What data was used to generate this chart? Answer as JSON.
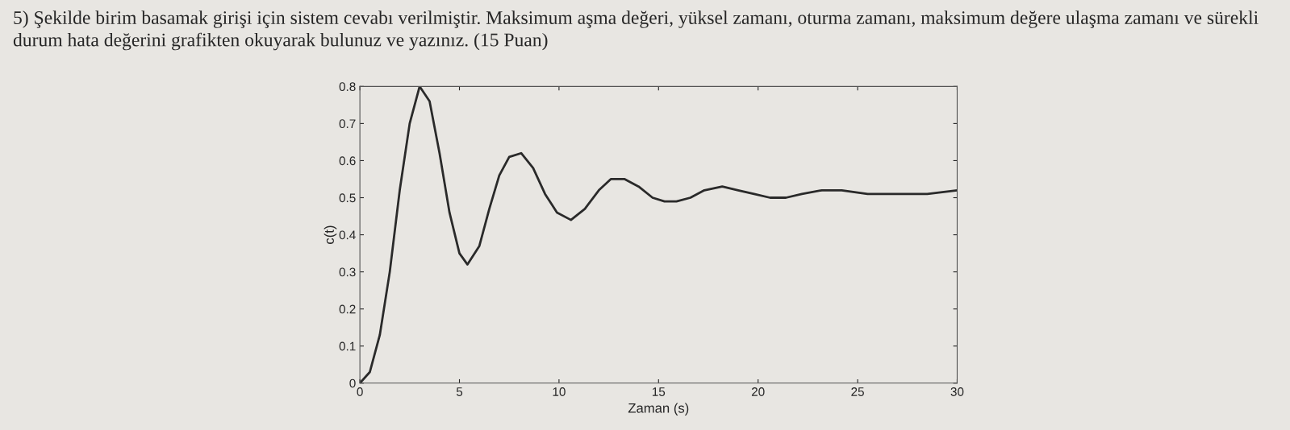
{
  "chart_data": {
    "type": "line",
    "title": "5) Şekilde birim basamak girişi için sistem cevabı verilmiştir. Maksimum aşma değeri, yüksel zamanı, oturma zamanı, maksimum değere ulaşma zamanı ve sürekli durum hata değerini grafikten okuyarak bulunuz ve yazınız. (15 Puan)",
    "xlabel": "Zaman (s)",
    "ylabel": "c(t)",
    "x": [
      0,
      0.5,
      1,
      1.5,
      2,
      2.5,
      3,
      3.5,
      4,
      4.5,
      5,
      5.4,
      6,
      6.5,
      7,
      7.5,
      8.1,
      8.7,
      9.3,
      9.9,
      10.6,
      11.3,
      12,
      12.6,
      13.3,
      14,
      14.7,
      15.3,
      15.9,
      16.6,
      17.3,
      18.2,
      19,
      19.8,
      20.6,
      21.4,
      22.2,
      23.2,
      24.2,
      25.5,
      26.5,
      27.5,
      28.5,
      30
    ],
    "series": [
      {
        "color": "#2a2a2a",
        "values": [
          0,
          0.03,
          0.13,
          0.3,
          0.52,
          0.7,
          0.8,
          0.76,
          0.62,
          0.46,
          0.35,
          0.32,
          0.37,
          0.47,
          0.56,
          0.61,
          0.62,
          0.58,
          0.51,
          0.46,
          0.44,
          0.47,
          0.52,
          0.55,
          0.55,
          0.53,
          0.5,
          0.49,
          0.49,
          0.5,
          0.52,
          0.53,
          0.52,
          0.51,
          0.5,
          0.5,
          0.51,
          0.52,
          0.52,
          0.51,
          0.51,
          0.51,
          0.51,
          0.52
        ]
      }
    ],
    "xlim": [
      0,
      30
    ],
    "xticks": [
      0,
      5,
      10,
      15,
      20,
      25,
      30
    ],
    "ylim": [
      0,
      0.8
    ],
    "yticks": [
      0,
      0.1,
      0.2,
      0.3,
      0.4,
      0.5,
      0.6,
      0.7,
      0.8
    ],
    "grid": false,
    "legend": false,
    "marker": "none",
    "line_style": "solid"
  }
}
